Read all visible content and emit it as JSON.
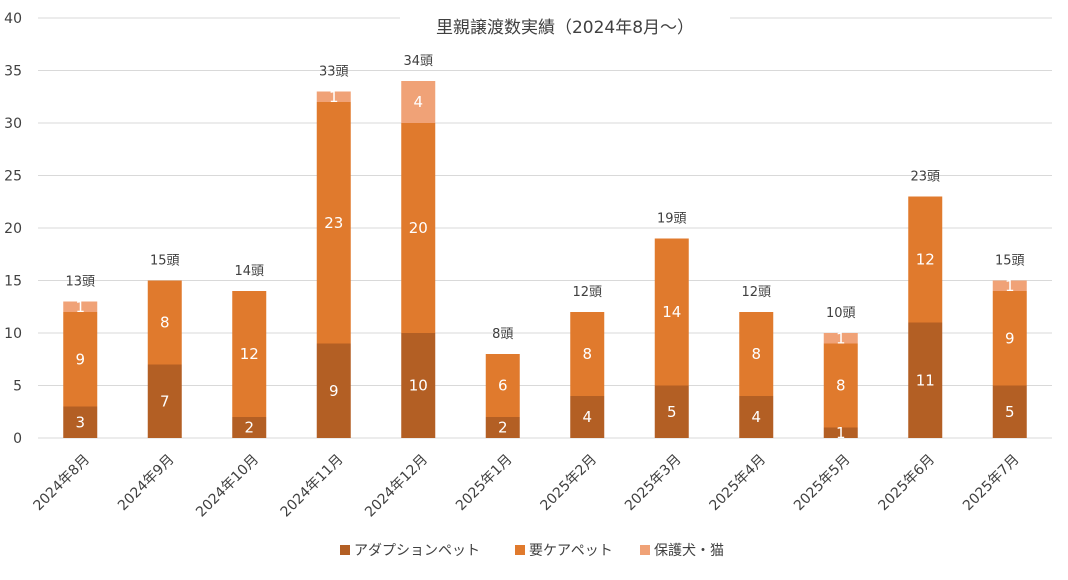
{
  "chart_data": {
    "type": "bar",
    "stacked": true,
    "title": "里親譲渡数実績（2024年8月～）",
    "xlabel": "",
    "ylabel": "",
    "ylim": [
      0,
      40
    ],
    "yticks": [
      0,
      5,
      10,
      15,
      20,
      25,
      30,
      35,
      40
    ],
    "grid": true,
    "legend_position": "bottom",
    "categories": [
      "2024年8月",
      "2024年9月",
      "2024年10月",
      "2024年11月",
      "2024年12月",
      "2025年1月",
      "2025年2月",
      "2025年3月",
      "2025年4月",
      "2025年5月",
      "2025年6月",
      "2025年7月"
    ],
    "series": [
      {
        "name": "アダプションペット",
        "color": "#b35f24",
        "values": [
          3,
          7,
          2,
          9,
          10,
          2,
          4,
          5,
          4,
          1,
          11,
          5
        ]
      },
      {
        "name": "要ケアペット",
        "color": "#e07a2d",
        "values": [
          9,
          8,
          12,
          23,
          20,
          6,
          8,
          14,
          8,
          8,
          12,
          9
        ]
      },
      {
        "name": "保護犬・猫",
        "color": "#f0a277",
        "values": [
          1,
          0,
          0,
          1,
          4,
          0,
          0,
          0,
          0,
          1,
          0,
          1
        ]
      }
    ],
    "totals": [
      13,
      15,
      14,
      33,
      34,
      8,
      12,
      19,
      12,
      10,
      23,
      15
    ],
    "total_suffix": "頭",
    "label_color": "#ffffff",
    "grid_color": "#d9d9d9",
    "text_color": "#404040"
  }
}
